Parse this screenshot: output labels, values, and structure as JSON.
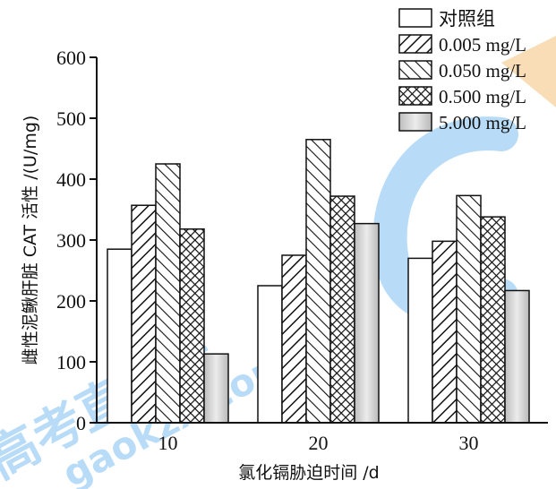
{
  "chart_data": {
    "type": "bar",
    "categories": [
      "10",
      "20",
      "30"
    ],
    "series": [
      {
        "name": "对照组",
        "values": [
          285,
          225,
          270
        ],
        "pattern": "blank"
      },
      {
        "name": "0.005 mg/L",
        "values": [
          357,
          275,
          298
        ],
        "pattern": "forward-hatch"
      },
      {
        "name": "0.050 mg/L",
        "values": [
          425,
          465,
          373
        ],
        "pattern": "back-hatch"
      },
      {
        "name": "0.500 mg/L",
        "values": [
          318,
          372,
          338
        ],
        "pattern": "crosshatch"
      },
      {
        "name": "5.000 mg/L",
        "values": [
          113,
          327,
          217
        ],
        "pattern": "gray-gradient"
      }
    ],
    "xlabel": "氯化镉胁迫时间 /d",
    "ylabel": "雌性泥鳅肝脏 CAT 活性 /(U/mg)",
    "ylim": [
      0,
      600
    ],
    "yticks": [
      0,
      100,
      200,
      300,
      400,
      500,
      600
    ],
    "legend_position": "top-right",
    "grid": false
  },
  "watermark": {
    "text_cn": "高考直通车",
    "text_url": "gaokzx.com",
    "color": "#7fbff0"
  }
}
